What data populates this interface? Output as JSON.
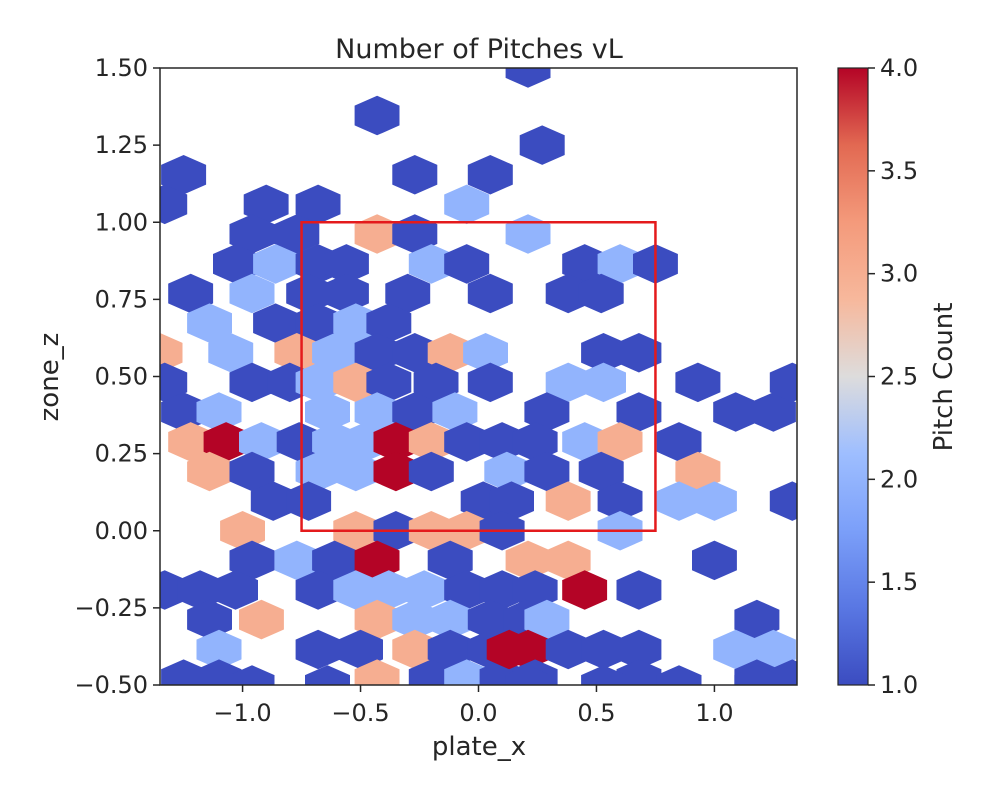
{
  "chart_data": {
    "type": "heatmap",
    "subtype": "hexbin",
    "title": "Number of Pitches vL",
    "xlabel": "plate_x",
    "ylabel": "zone_z",
    "xlim": [
      -1.35,
      1.35
    ],
    "ylim": [
      -0.5,
      1.5
    ],
    "xticks": [
      -1.0,
      -0.5,
      0.0,
      0.5,
      1.0
    ],
    "xtick_labels": [
      "−1.0",
      "−0.5",
      "0.0",
      "0.5",
      "1.0"
    ],
    "yticks": [
      -0.5,
      -0.25,
      0.0,
      0.25,
      0.5,
      0.75,
      1.0,
      1.25,
      1.5
    ],
    "ytick_labels": [
      "−0.50",
      "−0.25",
      "0.00",
      "0.25",
      "0.50",
      "0.75",
      "1.00",
      "1.25",
      "1.50"
    ],
    "grid": false,
    "colormap": "coolwarm",
    "colorbar": {
      "label": "Pitch Count",
      "range": [
        1.0,
        4.0
      ],
      "ticks": [
        1.0,
        1.5,
        2.0,
        2.5,
        3.0,
        3.5,
        4.0
      ],
      "tick_labels": [
        "1.0",
        "1.5",
        "2.0",
        "2.5",
        "3.0",
        "3.5",
        "4.0"
      ]
    },
    "strike_zone": {
      "x": [
        -0.75,
        0.75
      ],
      "z": [
        0.0,
        1.0
      ],
      "color": "#e41a1c"
    },
    "cell_width": 0.1905,
    "cell_height": 0.09615,
    "hexbins": [
      {
        "x": 0.21,
        "z": 1.5,
        "count": 1
      },
      {
        "x": -0.43,
        "z": 1.346,
        "count": 1
      },
      {
        "x": 0.27,
        "z": 1.25,
        "count": 1
      },
      {
        "x": -1.25,
        "z": 1.154,
        "count": 1
      },
      {
        "x": -0.27,
        "z": 1.154,
        "count": 1
      },
      {
        "x": 0.05,
        "z": 1.154,
        "count": 1
      },
      {
        "x": -1.33,
        "z": 1.058,
        "count": 1
      },
      {
        "x": -0.9,
        "z": 1.058,
        "count": 1
      },
      {
        "x": -0.68,
        "z": 1.058,
        "count": 1
      },
      {
        "x": -0.05,
        "z": 1.058,
        "count": 2
      },
      {
        "x": -0.96,
        "z": 0.962,
        "count": 1
      },
      {
        "x": -0.77,
        "z": 0.962,
        "count": 1
      },
      {
        "x": -0.43,
        "z": 0.962,
        "count": 3
      },
      {
        "x": -0.27,
        "z": 0.962,
        "count": 1
      },
      {
        "x": 0.21,
        "z": 0.962,
        "count": 2
      },
      {
        "x": -1.03,
        "z": 0.865,
        "count": 1
      },
      {
        "x": -0.86,
        "z": 0.865,
        "count": 2
      },
      {
        "x": -0.68,
        "z": 0.865,
        "count": 1
      },
      {
        "x": -0.56,
        "z": 0.865,
        "count": 1
      },
      {
        "x": -0.2,
        "z": 0.865,
        "count": 2
      },
      {
        "x": -0.05,
        "z": 0.865,
        "count": 1
      },
      {
        "x": 0.45,
        "z": 0.865,
        "count": 1
      },
      {
        "x": 0.6,
        "z": 0.865,
        "count": 2
      },
      {
        "x": 0.75,
        "z": 0.865,
        "count": 1
      },
      {
        "x": -1.22,
        "z": 0.769,
        "count": 1
      },
      {
        "x": -0.96,
        "z": 0.769,
        "count": 2
      },
      {
        "x": -0.72,
        "z": 0.769,
        "count": 1
      },
      {
        "x": -0.56,
        "z": 0.769,
        "count": 1
      },
      {
        "x": -0.3,
        "z": 0.769,
        "count": 1
      },
      {
        "x": 0.05,
        "z": 0.769,
        "count": 1
      },
      {
        "x": 0.38,
        "z": 0.769,
        "count": 1
      },
      {
        "x": 0.52,
        "z": 0.769,
        "count": 1
      },
      {
        "x": -1.14,
        "z": 0.673,
        "count": 2
      },
      {
        "x": -0.86,
        "z": 0.673,
        "count": 1
      },
      {
        "x": -0.68,
        "z": 0.673,
        "count": 1
      },
      {
        "x": -0.52,
        "z": 0.673,
        "count": 2
      },
      {
        "x": -0.38,
        "z": 0.673,
        "count": 1
      },
      {
        "x": -1.05,
        "z": 0.577,
        "count": 2
      },
      {
        "x": -0.77,
        "z": 0.577,
        "count": 3
      },
      {
        "x": -0.61,
        "z": 0.577,
        "count": 2
      },
      {
        "x": -0.43,
        "z": 0.577,
        "count": 1
      },
      {
        "x": -0.27,
        "z": 0.577,
        "count": 1
      },
      {
        "x": -0.12,
        "z": 0.577,
        "count": 3
      },
      {
        "x": 0.03,
        "z": 0.577,
        "count": 2
      },
      {
        "x": 0.53,
        "z": 0.577,
        "count": 1
      },
      {
        "x": 0.68,
        "z": 0.577,
        "count": 1
      },
      {
        "x": -1.35,
        "z": 0.577,
        "count": 3
      },
      {
        "x": -1.33,
        "z": 0.481,
        "count": 1
      },
      {
        "x": -0.96,
        "z": 0.481,
        "count": 1
      },
      {
        "x": -0.8,
        "z": 0.481,
        "count": 1
      },
      {
        "x": -0.68,
        "z": 0.481,
        "count": 2
      },
      {
        "x": -0.52,
        "z": 0.481,
        "count": 3
      },
      {
        "x": -0.38,
        "z": 0.481,
        "count": 1
      },
      {
        "x": -0.18,
        "z": 0.481,
        "count": 1
      },
      {
        "x": 0.05,
        "z": 0.481,
        "count": 1
      },
      {
        "x": 0.38,
        "z": 0.481,
        "count": 2
      },
      {
        "x": 0.53,
        "z": 0.481,
        "count": 2
      },
      {
        "x": 0.93,
        "z": 0.481,
        "count": 1
      },
      {
        "x": -1.25,
        "z": 0.385,
        "count": 1
      },
      {
        "x": -1.1,
        "z": 0.385,
        "count": 2
      },
      {
        "x": -0.64,
        "z": 0.385,
        "count": 2
      },
      {
        "x": -0.43,
        "z": 0.385,
        "count": 2
      },
      {
        "x": -0.27,
        "z": 0.385,
        "count": 1
      },
      {
        "x": -0.1,
        "z": 0.385,
        "count": 2
      },
      {
        "x": 0.29,
        "z": 0.385,
        "count": 1
      },
      {
        "x": 0.68,
        "z": 0.385,
        "count": 1
      },
      {
        "x": 1.09,
        "z": 0.385,
        "count": 1
      },
      {
        "x": 1.25,
        "z": 0.385,
        "count": 1
      },
      {
        "x": 1.33,
        "z": 0.481,
        "count": 1
      },
      {
        "x": -1.22,
        "z": 0.288,
        "count": 3
      },
      {
        "x": -1.07,
        "z": 0.288,
        "count": 4
      },
      {
        "x": -0.92,
        "z": 0.288,
        "count": 2
      },
      {
        "x": -0.76,
        "z": 0.288,
        "count": 1
      },
      {
        "x": -0.61,
        "z": 0.288,
        "count": 2
      },
      {
        "x": -0.48,
        "z": 0.288,
        "count": 2
      },
      {
        "x": -0.35,
        "z": 0.288,
        "count": 4
      },
      {
        "x": -0.2,
        "z": 0.288,
        "count": 3
      },
      {
        "x": -0.05,
        "z": 0.288,
        "count": 1
      },
      {
        "x": 0.1,
        "z": 0.288,
        "count": 1
      },
      {
        "x": 0.24,
        "z": 0.288,
        "count": 1
      },
      {
        "x": 0.45,
        "z": 0.288,
        "count": 2
      },
      {
        "x": 0.6,
        "z": 0.288,
        "count": 3
      },
      {
        "x": 0.85,
        "z": 0.288,
        "count": 1
      },
      {
        "x": -1.14,
        "z": 0.192,
        "count": 3
      },
      {
        "x": -0.96,
        "z": 0.192,
        "count": 1
      },
      {
        "x": -0.68,
        "z": 0.192,
        "count": 2
      },
      {
        "x": -0.52,
        "z": 0.192,
        "count": 2
      },
      {
        "x": -0.35,
        "z": 0.192,
        "count": 4
      },
      {
        "x": -0.2,
        "z": 0.192,
        "count": 1
      },
      {
        "x": 0.12,
        "z": 0.192,
        "count": 2
      },
      {
        "x": 0.29,
        "z": 0.192,
        "count": 1
      },
      {
        "x": 0.52,
        "z": 0.192,
        "count": 1
      },
      {
        "x": 0.93,
        "z": 0.192,
        "count": 3
      },
      {
        "x": -0.87,
        "z": 0.096,
        "count": 1
      },
      {
        "x": -0.72,
        "z": 0.096,
        "count": 1
      },
      {
        "x": 0.02,
        "z": 0.096,
        "count": 1
      },
      {
        "x": 0.14,
        "z": 0.096,
        "count": 1
      },
      {
        "x": 0.38,
        "z": 0.096,
        "count": 3
      },
      {
        "x": 0.6,
        "z": 0.096,
        "count": 1
      },
      {
        "x": 0.85,
        "z": 0.096,
        "count": 2
      },
      {
        "x": 1.0,
        "z": 0.096,
        "count": 2
      },
      {
        "x": 1.33,
        "z": 0.096,
        "count": 1
      },
      {
        "x": -1.0,
        "z": 0.0,
        "count": 3
      },
      {
        "x": -0.52,
        "z": 0.0,
        "count": 3
      },
      {
        "x": -0.35,
        "z": 0.0,
        "count": 1
      },
      {
        "x": -0.2,
        "z": 0.0,
        "count": 3
      },
      {
        "x": -0.05,
        "z": 0.0,
        "count": 3
      },
      {
        "x": 0.1,
        "z": 0.0,
        "count": 1
      },
      {
        "x": 0.6,
        "z": 0.0,
        "count": 2
      },
      {
        "x": -0.96,
        "z": -0.096,
        "count": 1
      },
      {
        "x": -0.77,
        "z": -0.096,
        "count": 2
      },
      {
        "x": -0.61,
        "z": -0.096,
        "count": 1
      },
      {
        "x": -0.43,
        "z": -0.096,
        "count": 4
      },
      {
        "x": -0.12,
        "z": -0.096,
        "count": 1
      },
      {
        "x": 0.21,
        "z": -0.096,
        "count": 3
      },
      {
        "x": 0.38,
        "z": -0.096,
        "count": 3
      },
      {
        "x": 1.0,
        "z": -0.096,
        "count": 1
      },
      {
        "x": -1.33,
        "z": -0.192,
        "count": 1
      },
      {
        "x": -1.18,
        "z": -0.192,
        "count": 1
      },
      {
        "x": -1.03,
        "z": -0.192,
        "count": 1
      },
      {
        "x": -0.68,
        "z": -0.192,
        "count": 1
      },
      {
        "x": -0.52,
        "z": -0.192,
        "count": 2
      },
      {
        "x": -0.38,
        "z": -0.192,
        "count": 2
      },
      {
        "x": -0.23,
        "z": -0.192,
        "count": 2
      },
      {
        "x": -0.05,
        "z": -0.192,
        "count": 1
      },
      {
        "x": 0.1,
        "z": -0.192,
        "count": 1
      },
      {
        "x": 0.24,
        "z": -0.192,
        "count": 1
      },
      {
        "x": 0.45,
        "z": -0.192,
        "count": 4
      },
      {
        "x": 0.68,
        "z": -0.192,
        "count": 1
      },
      {
        "x": -1.14,
        "z": -0.288,
        "count": 1
      },
      {
        "x": -0.92,
        "z": -0.288,
        "count": 3
      },
      {
        "x": -0.43,
        "z": -0.288,
        "count": 3
      },
      {
        "x": -0.27,
        "z": -0.288,
        "count": 2
      },
      {
        "x": -0.12,
        "z": -0.288,
        "count": 2
      },
      {
        "x": 0.05,
        "z": -0.288,
        "count": 1
      },
      {
        "x": 0.2,
        "z": -0.288,
        "count": 1
      },
      {
        "x": 0.29,
        "z": -0.288,
        "count": 2
      },
      {
        "x": 1.18,
        "z": -0.288,
        "count": 1
      },
      {
        "x": -1.1,
        "z": -0.385,
        "count": 2
      },
      {
        "x": -0.5,
        "z": -0.385,
        "count": 1
      },
      {
        "x": -0.27,
        "z": -0.385,
        "count": 3
      },
      {
        "x": -0.12,
        "z": -0.385,
        "count": 1
      },
      {
        "x": 0.05,
        "z": -0.385,
        "count": 1
      },
      {
        "x": 0.21,
        "z": -0.385,
        "count": 4
      },
      {
        "x": 0.38,
        "z": -0.385,
        "count": 1
      },
      {
        "x": 0.53,
        "z": -0.385,
        "count": 1
      },
      {
        "x": 0.68,
        "z": -0.385,
        "count": 1
      },
      {
        "x": 1.09,
        "z": -0.385,
        "count": 2
      },
      {
        "x": 1.25,
        "z": -0.385,
        "count": 2
      },
      {
        "x": -1.25,
        "z": -0.481,
        "count": 1
      },
      {
        "x": -1.1,
        "z": -0.481,
        "count": 1
      },
      {
        "x": -0.43,
        "z": -0.481,
        "count": 3
      },
      {
        "x": -0.2,
        "z": -0.481,
        "count": 1
      },
      {
        "x": -0.05,
        "z": -0.481,
        "count": 2
      },
      {
        "x": 0.1,
        "z": -0.481,
        "count": 1
      },
      {
        "x": 0.24,
        "z": -0.481,
        "count": 1
      },
      {
        "x": 0.68,
        "z": -0.481,
        "count": 1
      },
      {
        "x": 1.18,
        "z": -0.481,
        "count": 1
      },
      {
        "x": 1.33,
        "z": -0.481,
        "count": 1
      },
      {
        "x": -0.68,
        "z": -0.385,
        "count": 1
      },
      {
        "x": 0.13,
        "z": -0.385,
        "count": 4
      },
      {
        "x": -0.96,
        "z": -0.5,
        "count": 1
      },
      {
        "x": -0.64,
        "z": -0.5,
        "count": 1
      },
      {
        "x": 0.21,
        "z": -0.5,
        "count": 1
      },
      {
        "x": 0.53,
        "z": -0.5,
        "count": 1
      },
      {
        "x": 0.85,
        "z": -0.5,
        "count": 1
      },
      {
        "x": 1.18,
        "z": -0.5,
        "count": 1
      }
    ]
  }
}
